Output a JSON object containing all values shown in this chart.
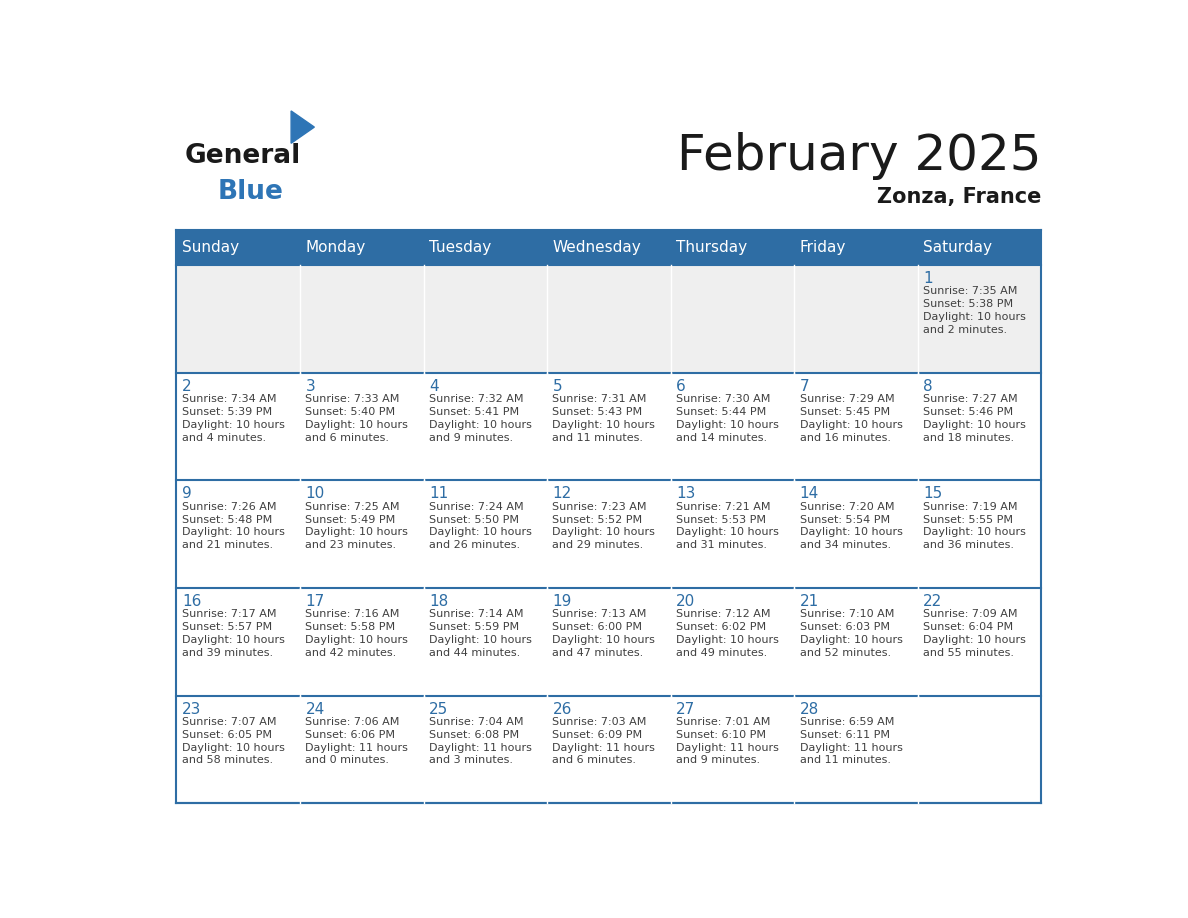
{
  "title": "February 2025",
  "subtitle": "Zonza, France",
  "header_bg_color": "#2E6DA4",
  "header_text_color": "#FFFFFF",
  "day_names": [
    "Sunday",
    "Monday",
    "Tuesday",
    "Wednesday",
    "Thursday",
    "Friday",
    "Saturday"
  ],
  "cell_bg_color": "#FFFFFF",
  "first_row_bg_color": "#EFEFEF",
  "grid_color": "#2E6DA4",
  "date_text_color": "#2E6DA4",
  "info_text_color": "#404040",
  "calendar_data": [
    [
      {
        "day": null,
        "info": ""
      },
      {
        "day": null,
        "info": ""
      },
      {
        "day": null,
        "info": ""
      },
      {
        "day": null,
        "info": ""
      },
      {
        "day": null,
        "info": ""
      },
      {
        "day": null,
        "info": ""
      },
      {
        "day": 1,
        "info": "Sunrise: 7:35 AM\nSunset: 5:38 PM\nDaylight: 10 hours\nand 2 minutes."
      }
    ],
    [
      {
        "day": 2,
        "info": "Sunrise: 7:34 AM\nSunset: 5:39 PM\nDaylight: 10 hours\nand 4 minutes."
      },
      {
        "day": 3,
        "info": "Sunrise: 7:33 AM\nSunset: 5:40 PM\nDaylight: 10 hours\nand 6 minutes."
      },
      {
        "day": 4,
        "info": "Sunrise: 7:32 AM\nSunset: 5:41 PM\nDaylight: 10 hours\nand 9 minutes."
      },
      {
        "day": 5,
        "info": "Sunrise: 7:31 AM\nSunset: 5:43 PM\nDaylight: 10 hours\nand 11 minutes."
      },
      {
        "day": 6,
        "info": "Sunrise: 7:30 AM\nSunset: 5:44 PM\nDaylight: 10 hours\nand 14 minutes."
      },
      {
        "day": 7,
        "info": "Sunrise: 7:29 AM\nSunset: 5:45 PM\nDaylight: 10 hours\nand 16 minutes."
      },
      {
        "day": 8,
        "info": "Sunrise: 7:27 AM\nSunset: 5:46 PM\nDaylight: 10 hours\nand 18 minutes."
      }
    ],
    [
      {
        "day": 9,
        "info": "Sunrise: 7:26 AM\nSunset: 5:48 PM\nDaylight: 10 hours\nand 21 minutes."
      },
      {
        "day": 10,
        "info": "Sunrise: 7:25 AM\nSunset: 5:49 PM\nDaylight: 10 hours\nand 23 minutes."
      },
      {
        "day": 11,
        "info": "Sunrise: 7:24 AM\nSunset: 5:50 PM\nDaylight: 10 hours\nand 26 minutes."
      },
      {
        "day": 12,
        "info": "Sunrise: 7:23 AM\nSunset: 5:52 PM\nDaylight: 10 hours\nand 29 minutes."
      },
      {
        "day": 13,
        "info": "Sunrise: 7:21 AM\nSunset: 5:53 PM\nDaylight: 10 hours\nand 31 minutes."
      },
      {
        "day": 14,
        "info": "Sunrise: 7:20 AM\nSunset: 5:54 PM\nDaylight: 10 hours\nand 34 minutes."
      },
      {
        "day": 15,
        "info": "Sunrise: 7:19 AM\nSunset: 5:55 PM\nDaylight: 10 hours\nand 36 minutes."
      }
    ],
    [
      {
        "day": 16,
        "info": "Sunrise: 7:17 AM\nSunset: 5:57 PM\nDaylight: 10 hours\nand 39 minutes."
      },
      {
        "day": 17,
        "info": "Sunrise: 7:16 AM\nSunset: 5:58 PM\nDaylight: 10 hours\nand 42 minutes."
      },
      {
        "day": 18,
        "info": "Sunrise: 7:14 AM\nSunset: 5:59 PM\nDaylight: 10 hours\nand 44 minutes."
      },
      {
        "day": 19,
        "info": "Sunrise: 7:13 AM\nSunset: 6:00 PM\nDaylight: 10 hours\nand 47 minutes."
      },
      {
        "day": 20,
        "info": "Sunrise: 7:12 AM\nSunset: 6:02 PM\nDaylight: 10 hours\nand 49 minutes."
      },
      {
        "day": 21,
        "info": "Sunrise: 7:10 AM\nSunset: 6:03 PM\nDaylight: 10 hours\nand 52 minutes."
      },
      {
        "day": 22,
        "info": "Sunrise: 7:09 AM\nSunset: 6:04 PM\nDaylight: 10 hours\nand 55 minutes."
      }
    ],
    [
      {
        "day": 23,
        "info": "Sunrise: 7:07 AM\nSunset: 6:05 PM\nDaylight: 10 hours\nand 58 minutes."
      },
      {
        "day": 24,
        "info": "Sunrise: 7:06 AM\nSunset: 6:06 PM\nDaylight: 11 hours\nand 0 minutes."
      },
      {
        "day": 25,
        "info": "Sunrise: 7:04 AM\nSunset: 6:08 PM\nDaylight: 11 hours\nand 3 minutes."
      },
      {
        "day": 26,
        "info": "Sunrise: 7:03 AM\nSunset: 6:09 PM\nDaylight: 11 hours\nand 6 minutes."
      },
      {
        "day": 27,
        "info": "Sunrise: 7:01 AM\nSunset: 6:10 PM\nDaylight: 11 hours\nand 9 minutes."
      },
      {
        "day": 28,
        "info": "Sunrise: 6:59 AM\nSunset: 6:11 PM\nDaylight: 11 hours\nand 11 minutes."
      },
      {
        "day": null,
        "info": ""
      }
    ]
  ],
  "logo_text1": "General",
  "logo_text2": "Blue",
  "logo_color1": "#1a1a1a",
  "logo_color2": "#2E75B6",
  "logo_triangle_color": "#2E75B6",
  "title_fontsize": 36,
  "subtitle_fontsize": 15,
  "day_header_fontsize": 11,
  "day_num_fontsize": 11,
  "info_fontsize": 8
}
